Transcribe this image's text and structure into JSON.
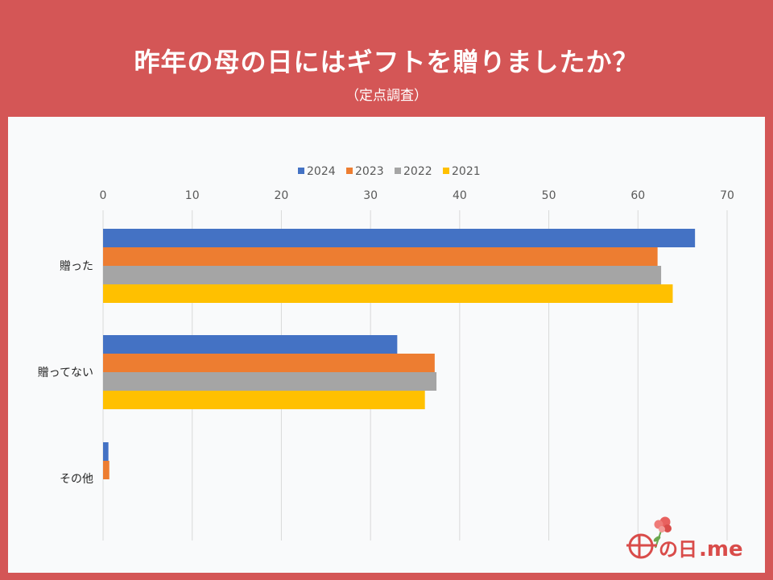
{
  "header": {
    "title": "昨年の母の日にはギフトを贈りましたか？",
    "subtitle": "（定点調査）"
  },
  "logo": {
    "text_a": "の日",
    "text_b": ".me"
  },
  "colors": {
    "background": "#d45656",
    "panel": "#f9fafb",
    "s2024": "#4472c4",
    "s2023": "#ed7d31",
    "s2022": "#a5a5a5",
    "s2021": "#ffc000"
  },
  "chart_data": {
    "type": "bar",
    "orientation": "horizontal",
    "title": "昨年の母の日にはギフトを贈りましたか？",
    "subtitle": "（定点調査）",
    "categories": [
      "贈った",
      "贈ってない",
      "その他"
    ],
    "series": [
      {
        "name": "2024",
        "color": "#4472c4",
        "values": [
          66.4,
          33.0,
          0.6
        ]
      },
      {
        "name": "2023",
        "color": "#ed7d31",
        "values": [
          62.2,
          37.2,
          0.7
        ]
      },
      {
        "name": "2022",
        "color": "#a5a5a5",
        "values": [
          62.6,
          37.4,
          0.0
        ]
      },
      {
        "name": "2021",
        "color": "#ffc000",
        "values": [
          63.9,
          36.1,
          0.0
        ]
      }
    ],
    "xlim": [
      0,
      70
    ],
    "xticks": [
      0,
      10,
      20,
      30,
      40,
      50,
      60,
      70
    ],
    "xaxis_position": "top",
    "grid": true,
    "legend_position": "top"
  }
}
